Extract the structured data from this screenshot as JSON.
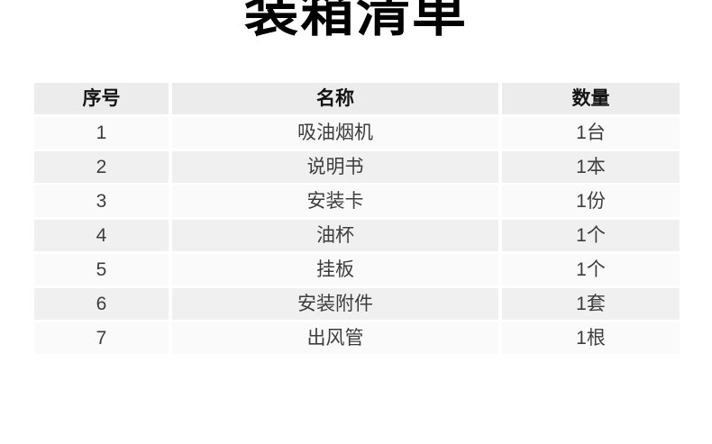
{
  "title": "装箱清单",
  "table": {
    "columns": [
      {
        "label": "序号"
      },
      {
        "label": "名称"
      },
      {
        "label": "数量"
      }
    ],
    "rows": [
      {
        "no": "1",
        "name": "吸油烟机",
        "qty": "1台"
      },
      {
        "no": "2",
        "name": "说明书",
        "qty": "1本"
      },
      {
        "no": "3",
        "name": "安装卡",
        "qty": "1份"
      },
      {
        "no": "4",
        "name": "油杯",
        "qty": "1个"
      },
      {
        "no": "5",
        "name": "挂板",
        "qty": "1个"
      },
      {
        "no": "6",
        "name": "安装附件",
        "qty": "1套"
      },
      {
        "no": "7",
        "name": "出风管",
        "qty": "1根"
      }
    ],
    "colors": {
      "header_bg": "#ececec",
      "row_odd_bg": "#fafafa",
      "row_even_bg": "#f0f0f0",
      "header_text": "#141414",
      "body_text": "#3d3d3d",
      "title_text": "#000000",
      "page_bg": "#ffffff"
    }
  }
}
